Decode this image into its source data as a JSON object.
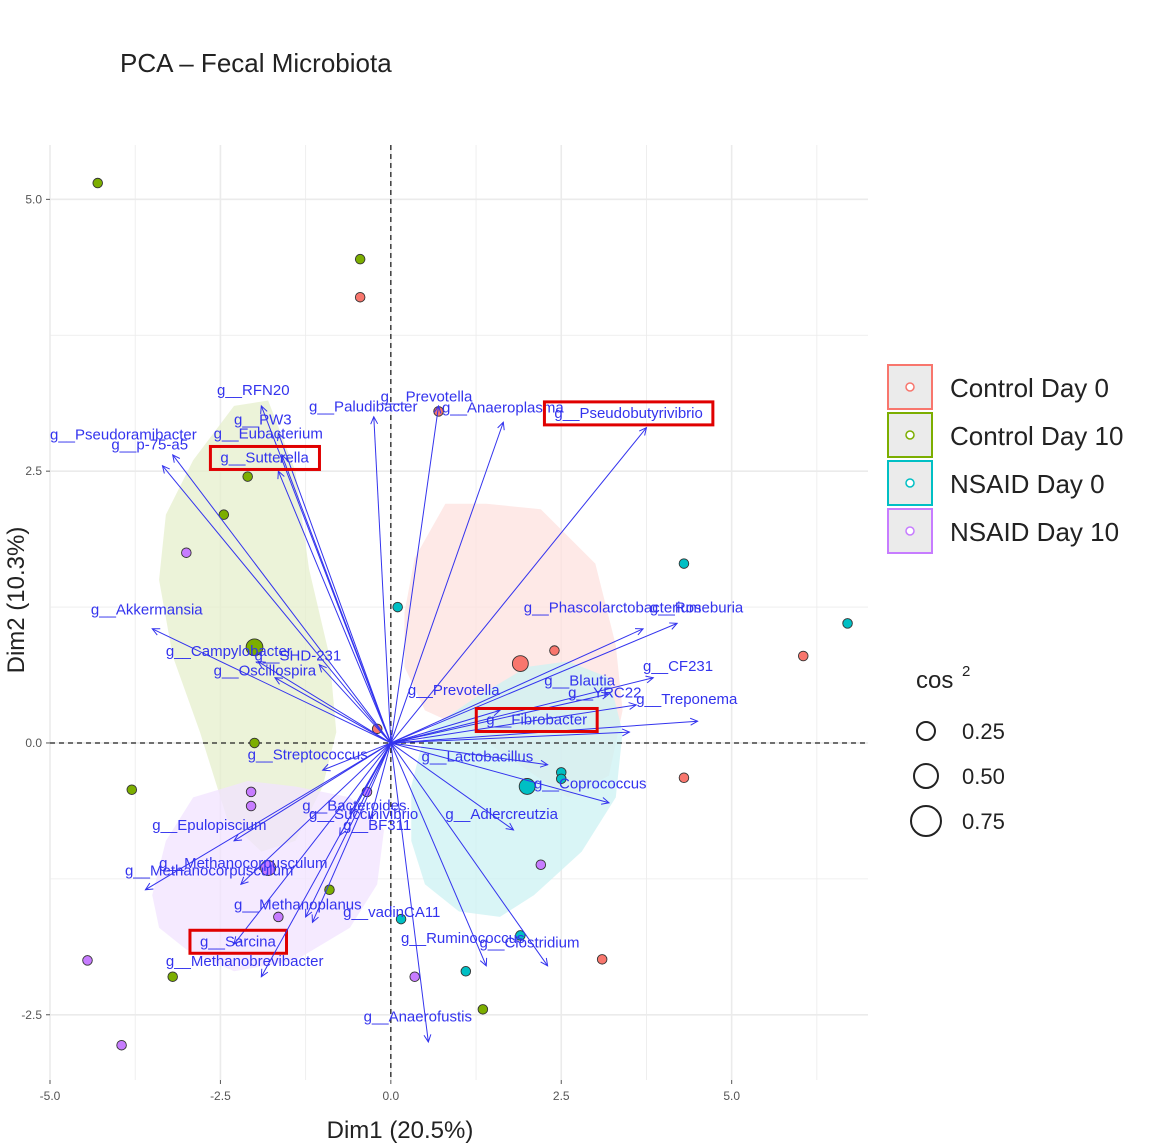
{
  "chart_data": {
    "type": "scatter",
    "title": "PCA – Fecal Microbiota",
    "xlabel": "Dim1 (20.5%)",
    "ylabel": "Dim2 (10.3%)",
    "xlim": [
      -5,
      7
    ],
    "ylim": [
      -3.1,
      5.5
    ],
    "x_ticks": [
      -5.0,
      -2.5,
      0.0,
      2.5,
      5.0
    ],
    "x_tick_labels": [
      "-5.0",
      "-2.5",
      "0.0",
      "2.5",
      "5.0"
    ],
    "y_ticks": [
      -2.5,
      0.0,
      2.5,
      5.0
    ],
    "y_tick_labels": [
      "-2.5",
      "0.0",
      "2.5",
      "5.0"
    ],
    "grid": true,
    "legend_position": "right",
    "groups": [
      {
        "name": "Control Day 0",
        "color": "#F8766D",
        "fill": "#fde1df"
      },
      {
        "name": "Control Day 10",
        "color": "#7CAE00",
        "fill": "#e5efcc"
      },
      {
        "name": "NSAID Day 0",
        "color": "#00BFC4",
        "fill": "#ccf2f3"
      },
      {
        "name": "NSAID Day 10",
        "color": "#C77CFF",
        "fill": "#f1e3ff"
      }
    ],
    "ellipses": [
      {
        "group": 0,
        "points": [
          [
            0.2,
            1.2
          ],
          [
            0.35,
            1.7
          ],
          [
            0.8,
            2.2
          ],
          [
            1.4,
            2.2
          ],
          [
            2.2,
            2.15
          ],
          [
            3.0,
            1.65
          ],
          [
            3.3,
            0.9
          ],
          [
            3.4,
            0.3
          ],
          [
            3.2,
            -0.3
          ],
          [
            2.6,
            -0.5
          ],
          [
            2.0,
            -0.25
          ],
          [
            1.2,
            0.1
          ],
          [
            0.5,
            0.3
          ],
          [
            0.2,
            0.7
          ]
        ]
      },
      {
        "group": 1,
        "points": [
          [
            -3.4,
            1.5
          ],
          [
            -3.3,
            2.1
          ],
          [
            -2.9,
            2.6
          ],
          [
            -2.3,
            3.1
          ],
          [
            -1.8,
            3.15
          ],
          [
            -1.4,
            2.5
          ],
          [
            -1.2,
            1.6
          ],
          [
            -0.9,
            0.8
          ],
          [
            -0.8,
            0.1
          ],
          [
            -1.0,
            -0.4
          ],
          [
            -1.4,
            -0.9
          ],
          [
            -1.9,
            -1.0
          ],
          [
            -2.4,
            -0.7
          ],
          [
            -2.8,
            0.1
          ],
          [
            -3.2,
            0.8
          ]
        ]
      },
      {
        "group": 2,
        "points": [
          [
            0.3,
            -0.4
          ],
          [
            0.5,
            0.1
          ],
          [
            1.2,
            0.4
          ],
          [
            2.0,
            0.7
          ],
          [
            2.6,
            0.75
          ],
          [
            3.2,
            0.6
          ],
          [
            3.4,
            0.1
          ],
          [
            3.3,
            -0.5
          ],
          [
            2.8,
            -1.0
          ],
          [
            2.1,
            -1.4
          ],
          [
            1.6,
            -1.6
          ],
          [
            1.0,
            -1.55
          ],
          [
            0.5,
            -1.3
          ],
          [
            0.3,
            -0.9
          ]
        ]
      },
      {
        "group": 3,
        "points": [
          [
            -3.5,
            -1.4
          ],
          [
            -3.3,
            -0.9
          ],
          [
            -2.9,
            -0.5
          ],
          [
            -2.1,
            -0.35
          ],
          [
            -1.4,
            -0.4
          ],
          [
            -0.6,
            -0.5
          ],
          [
            -0.1,
            -0.8
          ],
          [
            -0.2,
            -1.3
          ],
          [
            -0.6,
            -1.7
          ],
          [
            -1.4,
            -2.0
          ],
          [
            -2.3,
            -2.1
          ],
          [
            -3.0,
            -1.9
          ],
          [
            -3.4,
            -1.7
          ]
        ]
      }
    ],
    "points": [
      {
        "x": -4.3,
        "y": 5.15,
        "group": 1,
        "cos2": 0.2
      },
      {
        "x": -0.45,
        "y": 4.45,
        "group": 1,
        "cos2": 0.2
      },
      {
        "x": -0.45,
        "y": 4.1,
        "group": 0,
        "cos2": 0.2
      },
      {
        "x": 0.7,
        "y": 3.05,
        "group": 0,
        "cos2": 0.2
      },
      {
        "x": -2.1,
        "y": 2.45,
        "group": 1,
        "cos2": 0.2
      },
      {
        "x": -2.45,
        "y": 2.1,
        "group": 1,
        "cos2": 0.2
      },
      {
        "x": -3.0,
        "y": 1.75,
        "group": 3,
        "cos2": 0.2
      },
      {
        "x": 0.1,
        "y": 1.25,
        "group": 2,
        "cos2": 0.2
      },
      {
        "x": 4.3,
        "y": 1.65,
        "group": 2,
        "cos2": 0.2
      },
      {
        "x": 6.7,
        "y": 1.1,
        "group": 2,
        "cos2": 0.2
      },
      {
        "x": 6.05,
        "y": 0.8,
        "group": 0,
        "cos2": 0.2
      },
      {
        "x": -2.0,
        "y": 0.88,
        "group": 1,
        "cos2": 0.6
      },
      {
        "x": 1.9,
        "y": 0.73,
        "group": 0,
        "cos2": 0.55
      },
      {
        "x": 2.4,
        "y": 0.85,
        "group": 0,
        "cos2": 0.2
      },
      {
        "x": -0.2,
        "y": 0.13,
        "group": 0,
        "cos2": 0.2
      },
      {
        "x": -2.0,
        "y": 0.0,
        "group": 1,
        "cos2": 0.2
      },
      {
        "x": 2.5,
        "y": -0.27,
        "group": 2,
        "cos2": 0.2
      },
      {
        "x": 2.5,
        "y": -0.33,
        "group": 2,
        "cos2": 0.2
      },
      {
        "x": 2.0,
        "y": -0.4,
        "group": 2,
        "cos2": 0.55
      },
      {
        "x": 4.3,
        "y": -0.32,
        "group": 0,
        "cos2": 0.2
      },
      {
        "x": -3.8,
        "y": -0.43,
        "group": 1,
        "cos2": 0.2
      },
      {
        "x": -2.05,
        "y": -0.45,
        "group": 3,
        "cos2": 0.2
      },
      {
        "x": -2.05,
        "y": -0.58,
        "group": 3,
        "cos2": 0.2
      },
      {
        "x": -0.35,
        "y": -0.45,
        "group": 3,
        "cos2": 0.2
      },
      {
        "x": -1.8,
        "y": -1.15,
        "group": 3,
        "cos2": 0.5
      },
      {
        "x": 2.2,
        "y": -1.12,
        "group": 3,
        "cos2": 0.2
      },
      {
        "x": -0.9,
        "y": -1.35,
        "group": 1,
        "cos2": 0.2
      },
      {
        "x": -1.65,
        "y": -1.6,
        "group": 3,
        "cos2": 0.2
      },
      {
        "x": 0.15,
        "y": -1.62,
        "group": 2,
        "cos2": 0.2
      },
      {
        "x": 1.9,
        "y": -1.77,
        "group": 2,
        "cos2": 0.2
      },
      {
        "x": 3.1,
        "y": -1.99,
        "group": 0,
        "cos2": 0.2
      },
      {
        "x": -4.45,
        "y": -2.0,
        "group": 3,
        "cos2": 0.2
      },
      {
        "x": 1.1,
        "y": -2.1,
        "group": 2,
        "cos2": 0.2
      },
      {
        "x": 0.35,
        "y": -2.15,
        "group": 3,
        "cos2": 0.2
      },
      {
        "x": -3.2,
        "y": -2.15,
        "group": 1,
        "cos2": 0.2
      },
      {
        "x": 1.35,
        "y": -2.45,
        "group": 1,
        "cos2": 0.2
      },
      {
        "x": -3.95,
        "y": -2.78,
        "group": 3,
        "cos2": 0.2
      }
    ],
    "variables": [
      {
        "label": "g__RFN20",
        "x": -1.9,
        "y": 3.1,
        "lx": -2.55,
        "ly": 3.2
      },
      {
        "label": "g__Paludibacter",
        "x": -0.25,
        "y": 3.0,
        "lx": -1.2,
        "ly": 3.05
      },
      {
        "label": "g__Prevotella",
        "x": 0.7,
        "y": 3.1,
        "lx": -0.15,
        "ly": 3.14
      },
      {
        "label": "g__Anaeroplasma",
        "x": 1.65,
        "y": 2.95,
        "lx": 0.75,
        "ly": 3.04
      },
      {
        "label": "g__Pseudobutyrivibrio",
        "x": 3.75,
        "y": 2.9,
        "lx": 2.4,
        "ly": 2.99
      },
      {
        "label": "g__PW3",
        "x": -1.65,
        "y": 2.85,
        "lx": -2.3,
        "ly": 2.93
      },
      {
        "label": "g__Eubacterium",
        "x": -1.6,
        "y": 2.65,
        "lx": -2.6,
        "ly": 2.8
      },
      {
        "label": "g__Pseudoramibacter",
        "x": -3.2,
        "y": 2.65,
        "lx": -5.0,
        "ly": 2.79
      },
      {
        "label": "g__p-75-a5",
        "x": -3.35,
        "y": 2.55,
        "lx": -4.1,
        "ly": 2.7
      },
      {
        "label": "g__Sutterella",
        "x": -1.65,
        "y": 2.5,
        "lx": -2.5,
        "ly": 2.58
      },
      {
        "label": "g__Akkermansia",
        "x": -3.5,
        "y": 1.05,
        "lx": -4.4,
        "ly": 1.18
      },
      {
        "label": "g__Phascolarctobacterium",
        "x": 3.7,
        "y": 1.05,
        "lx": 1.95,
        "ly": 1.2
      },
      {
        "label": "g__Roseburia",
        "x": 4.2,
        "y": 1.1,
        "lx": 3.8,
        "ly": 1.2
      },
      {
        "label": "g__Campylobacter",
        "x": -1.95,
        "y": 0.75,
        "lx": -3.3,
        "ly": 0.8
      },
      {
        "label": "g__SHD-231",
        "x": -1.05,
        "y": 0.72,
        "lx": -2.0,
        "ly": 0.76
      },
      {
        "label": "g__Oscillospira",
        "x": -1.7,
        "y": 0.6,
        "lx": -2.6,
        "ly": 0.62
      },
      {
        "label": "g__CF231",
        "x": 3.85,
        "y": 0.6,
        "lx": 3.7,
        "ly": 0.66
      },
      {
        "label": "g__Blautia",
        "x": 3.2,
        "y": 0.45,
        "lx": 2.25,
        "ly": 0.53
      },
      {
        "label": "g__YRC22",
        "x": 3.6,
        "y": 0.35,
        "lx": 2.6,
        "ly": 0.42
      },
      {
        "label": "g__Prevotella",
        "x": 1.6,
        "y": 0.3,
        "lx": 0.25,
        "ly": 0.44
      },
      {
        "label": "g__Treponema",
        "x": 4.5,
        "y": 0.2,
        "lx": 3.6,
        "ly": 0.36
      },
      {
        "label": "g__Fibrobacter",
        "x": 3.5,
        "y": 0.1,
        "lx": 1.4,
        "ly": 0.17
      },
      {
        "label": "g__Streptococcus",
        "x": -1.0,
        "y": -0.25,
        "lx": -2.1,
        "ly": -0.15
      },
      {
        "label": "g__Lactobacillus",
        "x": 2.3,
        "y": -0.2,
        "lx": 0.45,
        "ly": -0.17
      },
      {
        "label": "g__Coprococcus",
        "x": 3.2,
        "y": -0.55,
        "lx": 2.1,
        "ly": -0.42
      },
      {
        "label": "g__Bacteroides",
        "x": -0.6,
        "y": -0.65,
        "lx": -1.3,
        "ly": -0.62
      },
      {
        "label": "g__Succinivibrio",
        "x": -0.3,
        "y": -0.7,
        "lx": -1.2,
        "ly": -0.7
      },
      {
        "label": "g__Adlercreutzia",
        "x": 1.8,
        "y": -0.8,
        "lx": 0.8,
        "ly": -0.7
      },
      {
        "label": "g__Epulopiscium",
        "x": -2.3,
        "y": -0.9,
        "lx": -3.5,
        "ly": -0.8
      },
      {
        "label": "g__BF311",
        "x": -0.75,
        "y": -0.85,
        "lx": -0.7,
        "ly": -0.8
      },
      {
        "label": "g__Methanocorpusculum",
        "x": -2.2,
        "y": -1.3,
        "lx": -3.4,
        "ly": -1.15
      },
      {
        "label": "g__Methanocorpusculum",
        "x": -3.6,
        "y": -1.35,
        "lx": -3.9,
        "ly": -1.22
      },
      {
        "label": "g__Methanoplanus",
        "x": -1.25,
        "y": -1.6,
        "lx": -2.3,
        "ly": -1.53
      },
      {
        "label": "g__vadinCA11",
        "x": -1.15,
        "y": -1.65,
        "lx": -0.7,
        "ly": -1.6
      },
      {
        "label": "g__Sarcina",
        "x": -2.3,
        "y": -1.85,
        "lx": -2.8,
        "ly": -1.87
      },
      {
        "label": "g__Ruminococcus",
        "x": 1.4,
        "y": -2.05,
        "lx": 0.15,
        "ly": -1.84
      },
      {
        "label": "g__Clostridium",
        "x": 2.3,
        "y": -2.05,
        "lx": 1.3,
        "ly": -1.88
      },
      {
        "label": "g__Methanobrevibacter",
        "x": -1.9,
        "y": -2.15,
        "lx": -3.3,
        "ly": -2.05
      },
      {
        "label": "g__Anaerofustis",
        "x": 0.55,
        "y": -2.75,
        "lx": -0.4,
        "ly": -2.56
      }
    ],
    "highlighted": [
      "g__Pseudobutyrivibrio",
      "g__Sutterella",
      "g__Fibrobacter",
      "g__Sarcina"
    ],
    "size_legend": {
      "title": "cos",
      "title_sup": "2",
      "items": [
        {
          "label": "0.25",
          "value": 0.25
        },
        {
          "label": "0.50",
          "value": 0.5
        },
        {
          "label": "0.75",
          "value": 0.75
        }
      ]
    },
    "colors": {
      "arrow": "#3333ee",
      "highlight_box": "#e00000",
      "grid": "#ebebeb"
    }
  }
}
